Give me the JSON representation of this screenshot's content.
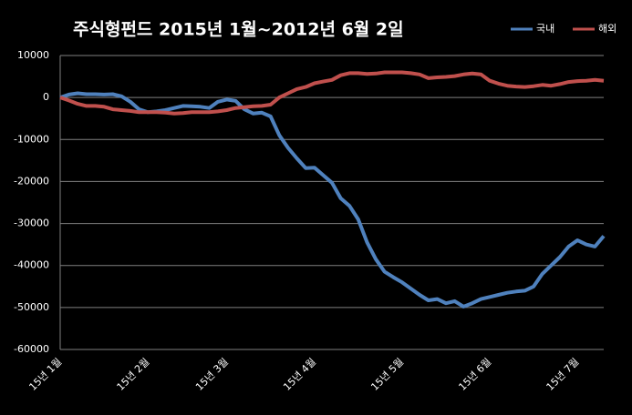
{
  "chart_data": {
    "type": "line",
    "title": "주식형펀드  2015년 1월~2012년 6월 2일",
    "categories": [
      "15년 1월",
      null,
      null,
      null,
      null,
      null,
      null,
      null,
      null,
      null,
      "15년 2월",
      null,
      null,
      null,
      null,
      null,
      null,
      null,
      null,
      "15년 3월",
      null,
      null,
      null,
      null,
      null,
      null,
      null,
      null,
      null,
      "15년 4월",
      null,
      null,
      null,
      null,
      null,
      null,
      null,
      null,
      null,
      "15년 5월",
      null,
      null,
      null,
      null,
      null,
      null,
      null,
      null,
      null,
      "15년 6월",
      null,
      null,
      null,
      null,
      null,
      null,
      null,
      null,
      null,
      "15년 7월",
      null,
      null,
      null
    ],
    "series": [
      {
        "name": "국내",
        "color": "#4f81bd",
        "values": [
          0,
          700,
          1000,
          800,
          800,
          700,
          800,
          300,
          -1000,
          -2800,
          -3500,
          -3300,
          -3000,
          -2500,
          -2000,
          -2100,
          -2200,
          -2500,
          -1000,
          -500,
          -800,
          -2800,
          -3800,
          -3600,
          -4500,
          -9000,
          -12000,
          -14500,
          -16800,
          -16700,
          -18500,
          -20300,
          -24000,
          -25800,
          -29000,
          -34500,
          -38500,
          -41500,
          -42800,
          -44000,
          -45500,
          -47000,
          -48300,
          -48000,
          -49000,
          -48500,
          -49800,
          -49000,
          -48000,
          -47500,
          -47000,
          -46500,
          -46200,
          -46000,
          -45000,
          -42000,
          -40000,
          -38000,
          -35500,
          -34000,
          -35000,
          -35500,
          -33000
        ]
      },
      {
        "name": "해외",
        "color": "#c0504d",
        "values": [
          0,
          -700,
          -1500,
          -2000,
          -2000,
          -2200,
          -2800,
          -3000,
          -3200,
          -3500,
          -3500,
          -3500,
          -3600,
          -3800,
          -3700,
          -3500,
          -3500,
          -3500,
          -3300,
          -3000,
          -2500,
          -2300,
          -2100,
          -2000,
          -1700,
          0,
          1000,
          2000,
          2500,
          3400,
          3800,
          4200,
          5300,
          5800,
          5800,
          5600,
          5700,
          6000,
          6000,
          6000,
          5800,
          5500,
          4600,
          4800,
          4900,
          5100,
          5500,
          5700,
          5500,
          4000,
          3300,
          2800,
          2600,
          2500,
          2700,
          3000,
          2800,
          3200,
          3700,
          3900,
          4000,
          4200,
          4000
        ]
      }
    ],
    "ylim": [
      -60000,
      10000
    ],
    "yticks": [
      10000,
      0,
      -10000,
      -20000,
      -30000,
      -40000,
      -50000,
      -60000
    ],
    "grid": true
  }
}
